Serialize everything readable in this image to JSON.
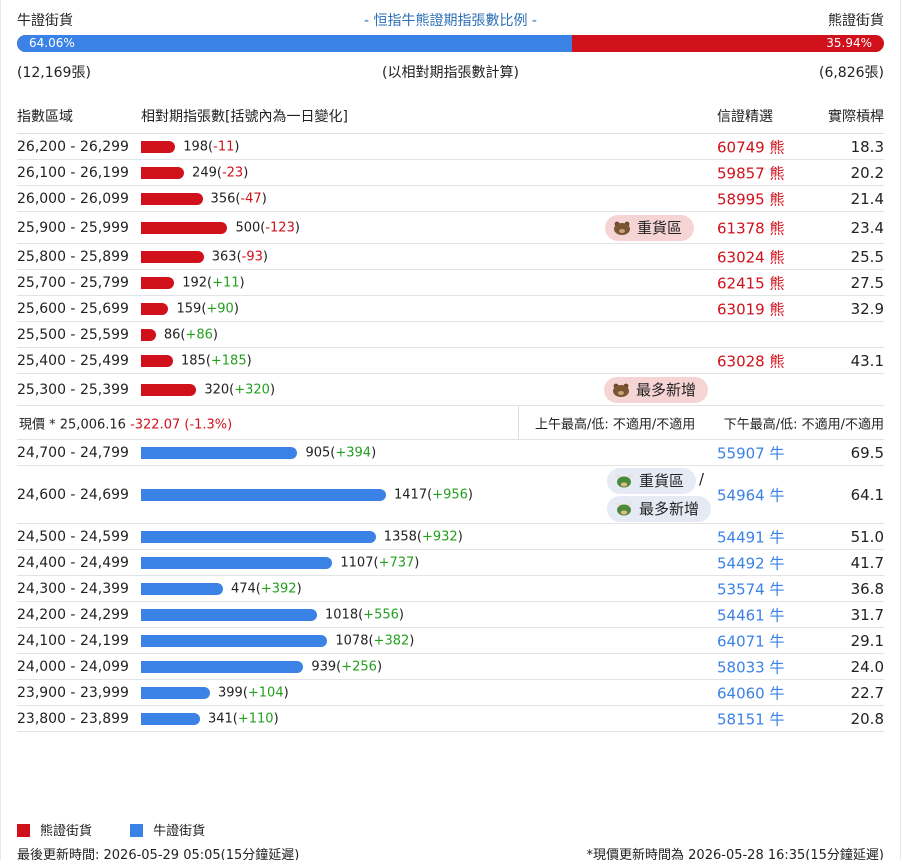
{
  "header": {
    "bull_label": "牛證街貨",
    "title": "- 恒指牛熊證期指張數比例 -",
    "bear_label": "熊證街貨"
  },
  "ratio": {
    "bull_pct": "64.06%",
    "bear_pct": "35.94%",
    "bull_fraction": 0.6406
  },
  "counts": {
    "bull": "(12,169張)",
    "note": "(以相對期指張數計算)",
    "bear": "(6,826張)"
  },
  "table_header": {
    "range": "指數區域",
    "contracts": "相對期指張數[括號內為一日變化]",
    "warrant": "信證精選",
    "leverage": "實際槓桿"
  },
  "bear_rows": [
    {
      "range": "26,200 - 26,299",
      "count": 198,
      "change": "-11",
      "code": "60749 熊",
      "lev": "18.3"
    },
    {
      "range": "26,100 - 26,199",
      "count": 249,
      "change": "-23",
      "code": "59857 熊",
      "lev": "20.2"
    },
    {
      "range": "26,000 - 26,099",
      "count": 356,
      "change": "-47",
      "code": "58995 熊",
      "lev": "21.4"
    },
    {
      "range": "25,900 - 25,999",
      "count": 500,
      "change": "-123",
      "code": "61378 熊",
      "lev": "23.4",
      "tag": "重貨區"
    },
    {
      "range": "25,800 - 25,899",
      "count": 363,
      "change": "-93",
      "code": "63024 熊",
      "lev": "25.5"
    },
    {
      "range": "25,700 - 25,799",
      "count": 192,
      "change": "+11",
      "code": "62415 熊",
      "lev": "27.5"
    },
    {
      "range": "25,600 - 25,699",
      "count": 159,
      "change": "+90",
      "code": "63019 熊",
      "lev": "32.9"
    },
    {
      "range": "25,500 - 25,599",
      "count": 86,
      "change": "+86",
      "code": "",
      "lev": ""
    },
    {
      "range": "25,400 - 25,499",
      "count": 185,
      "change": "+185",
      "code": "63028 熊",
      "lev": "43.1"
    },
    {
      "range": "25,300 - 25,399",
      "count": 320,
      "change": "+320",
      "code": "",
      "lev": "",
      "tag": "最多新增"
    }
  ],
  "price_row": {
    "label": "現價 *",
    "value": "25,006.16",
    "change": "-322.07 (-1.3%)",
    "am": "上午最高/低: 不適用/不適用",
    "pm": "下午最高/低: 不適用/不適用"
  },
  "bull_rows": [
    {
      "range": "24,700 - 24,799",
      "count": 905,
      "change": "+394",
      "code": "55907 牛",
      "lev": "69.5"
    },
    {
      "range": "24,600 - 24,699",
      "count": 1417,
      "change": "+956",
      "code": "54964 牛",
      "lev": "64.1",
      "tag": "重貨區",
      "tag2": "最多新增",
      "slash": "/"
    },
    {
      "range": "24,500 - 24,599",
      "count": 1358,
      "change": "+932",
      "code": "54491 牛",
      "lev": "51.0"
    },
    {
      "range": "24,400 - 24,499",
      "count": 1107,
      "change": "+737",
      "code": "54492 牛",
      "lev": "41.7"
    },
    {
      "range": "24,300 - 24,399",
      "count": 474,
      "change": "+392",
      "code": "53574 牛",
      "lev": "36.8"
    },
    {
      "range": "24,200 - 24,299",
      "count": 1018,
      "change": "+556",
      "code": "54461 牛",
      "lev": "31.7"
    },
    {
      "range": "24,100 - 24,199",
      "count": 1078,
      "change": "+382",
      "code": "64071 牛",
      "lev": "29.1"
    },
    {
      "range": "24,000 - 24,099",
      "count": 939,
      "change": "+256",
      "code": "58033 牛",
      "lev": "24.0"
    },
    {
      "range": "23,900 - 23,999",
      "count": 399,
      "change": "+104",
      "code": "64060 牛",
      "lev": "22.7"
    },
    {
      "range": "23,800 - 23,899",
      "count": 341,
      "change": "+110",
      "code": "58151 牛",
      "lev": "20.8"
    }
  ],
  "legend": {
    "bear": "熊證街貨",
    "bull": "牛證街貨"
  },
  "footer": {
    "updated": "最後更新時間: 2026-05-29 05:05(15分鐘延遲)",
    "price_updated": "*現價更新時間為 2026-05-28 16:35(15分鐘延遲)"
  },
  "colors": {
    "bear": "#d0101a",
    "bull": "#3b82e6",
    "title": "#2d6fb7",
    "up": "#23a01e"
  },
  "icons": {
    "bear_tag": "bear-icon",
    "bull_tag": "bull-icon"
  }
}
